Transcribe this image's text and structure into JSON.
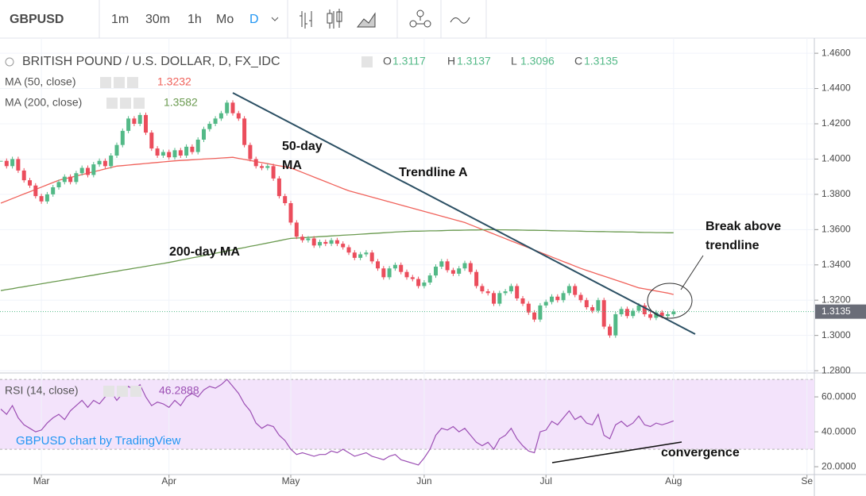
{
  "toolbar": {
    "symbol": "GBPUSD",
    "intervals": [
      "1m",
      "30m",
      "1h",
      "Mo",
      "D"
    ]
  },
  "chart_data": {
    "type": "candlestick",
    "title": "BRITISH POUND / U.S. DOLLAR, D, FX_IDC",
    "ohlc_legend": [
      {
        "label": "O",
        "value": "1.3117"
      },
      {
        "label": "H",
        "value": "1.3137"
      },
      {
        "label": "L",
        "value": "1.3096"
      },
      {
        "label": "C",
        "value": "1.3135"
      }
    ],
    "categories": [
      null,
      null,
      null,
      null,
      null,
      null,
      null,
      "Mar",
      null,
      null,
      null,
      null,
      null,
      null,
      null,
      null,
      null,
      null,
      null,
      null,
      null,
      null,
      null,
      null,
      null,
      null,
      null,
      null,
      null,
      "Apr",
      null,
      null,
      null,
      null,
      null,
      null,
      null,
      null,
      null,
      null,
      null,
      null,
      null,
      null,
      null,
      null,
      null,
      null,
      null,
      null,
      "May",
      null,
      null,
      null,
      null,
      null,
      null,
      null,
      null,
      null,
      null,
      null,
      null,
      null,
      null,
      null,
      null,
      null,
      null,
      null,
      null,
      null,
      null,
      "Jun",
      null,
      null,
      null,
      null,
      null,
      null,
      null,
      null,
      null,
      null,
      null,
      null,
      null,
      null,
      null,
      null,
      null,
      null,
      null,
      null,
      "Jul",
      null,
      null,
      null,
      null,
      null,
      null,
      null,
      null,
      null,
      null,
      null,
      null,
      null,
      null,
      null,
      null,
      null,
      null,
      null,
      null,
      null,
      "Aug",
      null,
      null,
      null,
      null,
      null,
      null,
      null,
      null,
      null,
      null,
      null,
      null,
      null,
      null,
      null,
      null,
      null,
      null,
      null,
      null,
      null,
      null,
      "Se",
      null
    ],
    "closes": [
      1.399,
      1.396,
      1.4,
      1.3935,
      1.388,
      1.385,
      1.379,
      1.376,
      1.38,
      1.384,
      1.387,
      1.39,
      1.387,
      1.392,
      1.395,
      1.391,
      1.397,
      1.399,
      1.396,
      1.402,
      1.408,
      1.416,
      1.423,
      1.42,
      1.425,
      1.415,
      1.406,
      1.402,
      1.404,
      1.401,
      1.405,
      1.402,
      1.407,
      1.404,
      1.411,
      1.417,
      1.42,
      1.423,
      1.426,
      1.432,
      1.426,
      1.423,
      1.408,
      1.4,
      1.396,
      1.395,
      1.396,
      1.389,
      1.379,
      1.375,
      1.364,
      1.356,
      1.354,
      1.355,
      1.351,
      1.353,
      1.352,
      1.354,
      1.352,
      1.35,
      1.347,
      1.344,
      1.346,
      1.347,
      1.342,
      1.338,
      1.333,
      1.338,
      1.34,
      1.336,
      1.333,
      1.332,
      1.328,
      1.33,
      1.334,
      1.339,
      1.342,
      1.337,
      1.335,
      1.338,
      1.341,
      1.336,
      1.328,
      1.325,
      1.324,
      1.318,
      1.324,
      1.325,
      1.328,
      1.321,
      1.318,
      1.313,
      1.309,
      1.317,
      1.319,
      1.322,
      1.32,
      1.324,
      1.328,
      1.323,
      1.32,
      1.316,
      1.314,
      1.32,
      1.305,
      1.3,
      1.312,
      1.315,
      1.311,
      1.314,
      1.317,
      1.312,
      1.31,
      1.313,
      1.311,
      1.312,
      1.3135,
      null,
      null,
      null,
      null,
      null,
      null,
      null,
      null,
      null,
      null,
      null,
      null,
      null,
      null,
      null,
      null,
      null,
      null,
      null,
      null,
      null,
      null,
      null,
      null
    ],
    "up_color": "#53b987",
    "down_color": "#eb4d5c",
    "ylim": [
      1.2787,
      1.4686
    ],
    "yticks": [
      {
        "value": 1.46,
        "label": "1.4600"
      },
      {
        "value": 1.44,
        "label": "1.4400"
      },
      {
        "value": 1.42,
        "label": "1.4200"
      },
      {
        "value": 1.4,
        "label": "1.4000"
      },
      {
        "value": 1.38,
        "label": "1.3800"
      },
      {
        "value": 1.36,
        "label": "1.3600"
      },
      {
        "value": 1.34,
        "label": "1.3400"
      },
      {
        "value": 1.32,
        "label": "1.3200"
      },
      {
        "value": 1.3,
        "label": "1.3000"
      },
      {
        "value": 1.28,
        "label": "1.2800"
      }
    ],
    "grid": true,
    "series": [
      {
        "name": "MA (50, close)",
        "color": "#f0625b",
        "value_label": "1.3232",
        "values": [
          1.375,
          1.3763,
          1.3776,
          1.3789,
          1.3802,
          1.3815,
          1.3828,
          1.3841,
          1.3854,
          1.3867,
          1.388,
          1.3888,
          1.3896,
          1.3904,
          1.3912,
          1.392,
          1.3928,
          1.3936,
          1.3944,
          1.3952,
          1.396,
          1.3963,
          1.3966,
          1.3969,
          1.3972,
          1.3975,
          1.3978,
          1.3981,
          1.3984,
          1.3987,
          1.399,
          1.3992,
          1.3994,
          1.3996,
          1.3998,
          1.4,
          1.4002,
          1.4004,
          1.4006,
          1.4008,
          1.401,
          1.4004,
          1.3998,
          1.3992,
          1.3986,
          1.398,
          1.3974,
          1.3968,
          1.3962,
          1.3956,
          1.395,
          1.3937,
          1.3924,
          1.3911,
          1.3898,
          1.3885,
          1.3872,
          1.3859,
          1.3846,
          1.3833,
          1.382,
          1.3811,
          1.3802,
          1.3793,
          1.3784,
          1.3775,
          1.3766,
          1.3757,
          1.3748,
          1.3739,
          1.373,
          1.3721,
          1.3712,
          1.3703,
          1.3694,
          1.3685,
          1.3676,
          1.3667,
          1.3658,
          1.3649,
          1.364,
          1.3627,
          1.3614,
          1.3601,
          1.3588,
          1.3575,
          1.3562,
          1.3549,
          1.3536,
          1.3523,
          1.351,
          1.3497,
          1.3484,
          1.3471,
          1.3458,
          1.3445,
          1.3432,
          1.3419,
          1.3406,
          1.3393,
          1.338,
          1.3369,
          1.3358,
          1.3347,
          1.3336,
          1.3325,
          1.3314,
          1.3303,
          1.3292,
          1.3281,
          1.327,
          1.3264,
          1.3258,
          1.3252,
          1.3246,
          1.324,
          1.3232,
          null,
          null,
          null,
          null,
          null,
          null,
          null,
          null,
          null,
          null,
          null,
          null,
          null,
          null,
          null,
          null,
          null,
          null,
          null,
          null,
          null,
          null,
          null,
          null
        ]
      },
      {
        "name": "MA (200, close)",
        "color": "#6a9a4f",
        "value_label": "1.3582",
        "values": [
          1.3254,
          1.326,
          1.3265,
          1.3271,
          1.3276,
          1.3282,
          1.3287,
          1.3293,
          1.3298,
          1.3304,
          1.3309,
          1.3315,
          1.332,
          1.3326,
          1.3331,
          1.3337,
          1.3342,
          1.3348,
          1.3353,
          1.3359,
          1.3364,
          1.337,
          1.3375,
          1.3381,
          1.3386,
          1.3392,
          1.3397,
          1.3403,
          1.3408,
          1.3414,
          1.342,
          1.3427,
          1.3433,
          1.344,
          1.3446,
          1.3453,
          1.3459,
          1.3466,
          1.3472,
          1.3479,
          1.3485,
          1.3492,
          1.3498,
          1.3505,
          1.3511,
          1.3518,
          1.3524,
          1.3531,
          1.3537,
          1.3544,
          1.355,
          1.3552,
          1.3554,
          1.3556,
          1.3558,
          1.356,
          1.3562,
          1.3564,
          1.3566,
          1.3568,
          1.357,
          1.3572,
          1.3574,
          1.3576,
          1.3578,
          1.358,
          1.3582,
          1.3584,
          1.3586,
          1.3588,
          1.359,
          1.3591,
          1.3591,
          1.3592,
          1.3593,
          1.3593,
          1.3594,
          1.3595,
          1.3596,
          1.3596,
          1.3597,
          1.3598,
          1.3598,
          1.3599,
          1.36,
          1.36,
          1.3599,
          1.3599,
          1.3598,
          1.3598,
          1.3597,
          1.3596,
          1.3596,
          1.3595,
          1.3595,
          1.3594,
          1.3593,
          1.3593,
          1.3592,
          1.3592,
          1.3591,
          1.359,
          1.359,
          1.3589,
          1.3589,
          1.3588,
          1.3587,
          1.3587,
          1.3586,
          1.3586,
          1.3585,
          1.3584,
          1.3584,
          1.3583,
          1.3583,
          1.3582,
          1.3582,
          null,
          null,
          null,
          null,
          null,
          null,
          null,
          null,
          null,
          null,
          null,
          null,
          null,
          null,
          null,
          null,
          null,
          null,
          null,
          null,
          null,
          null,
          null,
          null
        ]
      }
    ],
    "annotations": [
      "50-day",
      "MA",
      "Trendline A",
      "200-day MA",
      "Break above",
      "trendline",
      "convergence"
    ],
    "watermark": "GBPUSD chart by TradingView",
    "rsi": {
      "name": "RSI (14, close)",
      "color": "#9c4fb4",
      "value_label": "46.2888",
      "band": [
        30,
        70
      ],
      "band_color": "#f3e3fb",
      "ylim": [
        15.5,
        71.4
      ],
      "yticks": [
        {
          "value": 60,
          "label": "60.0000"
        },
        {
          "value": 40,
          "label": "40.0000"
        },
        {
          "value": 20,
          "label": "20.0000"
        }
      ],
      "values": [
        53,
        50,
        55,
        48,
        44,
        42,
        40,
        41,
        45,
        48,
        50,
        47,
        52,
        55,
        58,
        54,
        58,
        56,
        60,
        63,
        58,
        62,
        66,
        64,
        67,
        60,
        55,
        57,
        56,
        54,
        58,
        55,
        60,
        62,
        60,
        64,
        66,
        65,
        67,
        70,
        66,
        62,
        56,
        52,
        45,
        42,
        44,
        43,
        38,
        35,
        30,
        27,
        28,
        27,
        26,
        27,
        27,
        29,
        28,
        30,
        28,
        26,
        27,
        28,
        26,
        25,
        24,
        26,
        27,
        24,
        23,
        22,
        21,
        25,
        30,
        38,
        42,
        41,
        43,
        40,
        42,
        38,
        34,
        32,
        34,
        30,
        36,
        38,
        42,
        36,
        32,
        29,
        28,
        40,
        41,
        46,
        44,
        48,
        52,
        47,
        49,
        45,
        44,
        50,
        38,
        36,
        44,
        46,
        43,
        45,
        49,
        44,
        43,
        45,
        44,
        45,
        46.2888,
        null,
        null,
        null,
        null,
        null,
        null,
        null,
        null,
        null,
        null,
        null,
        null,
        null,
        null,
        null,
        null,
        null,
        null,
        null,
        null,
        null,
        null,
        null,
        null
      ]
    }
  }
}
